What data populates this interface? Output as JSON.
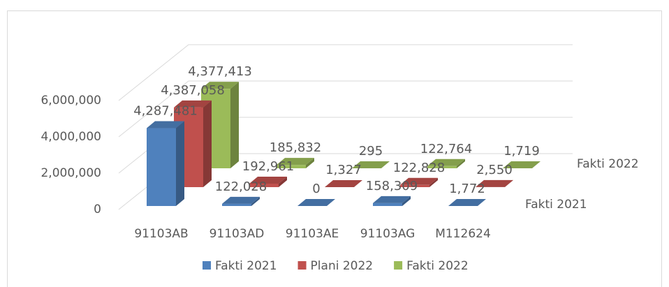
{
  "chart_data": {
    "type": "bar3d",
    "categories": [
      "91103AB",
      "91103AD",
      "91103AE",
      "91103AG",
      "M112624"
    ],
    "series": [
      {
        "name": "Fakti 2021",
        "color": "#4f81bd",
        "values": [
          4287481,
          122028,
          0,
          158309,
          1772
        ],
        "value_labels": [
          "4,287,481",
          "122,028",
          "0",
          "158,309",
          "1,772"
        ]
      },
      {
        "name": "Plani 2022",
        "color": "#c0504d",
        "values": [
          4387058,
          192961,
          1327,
          122828,
          2550
        ],
        "value_labels": [
          "4,387,058",
          "192,961",
          "1,327",
          "122,828",
          "2,550"
        ]
      },
      {
        "name": "Fakti 2022",
        "color": "#9bbb59",
        "values": [
          4377413,
          185832,
          295,
          122764,
          1719
        ],
        "value_labels": [
          "4,377,413",
          "185,832",
          "295",
          "122,764",
          "1,719"
        ]
      }
    ],
    "ylim": [
      0,
      6000000
    ],
    "yticks": [
      0,
      {
        "value": 2000000,
        "label": "2,000,000"
      },
      {
        "value": 4000000,
        "label": "4,000,000"
      },
      {
        "value": 6000000,
        "label": "6,000,000"
      }
    ],
    "grid": true,
    "legend": "bottom"
  }
}
